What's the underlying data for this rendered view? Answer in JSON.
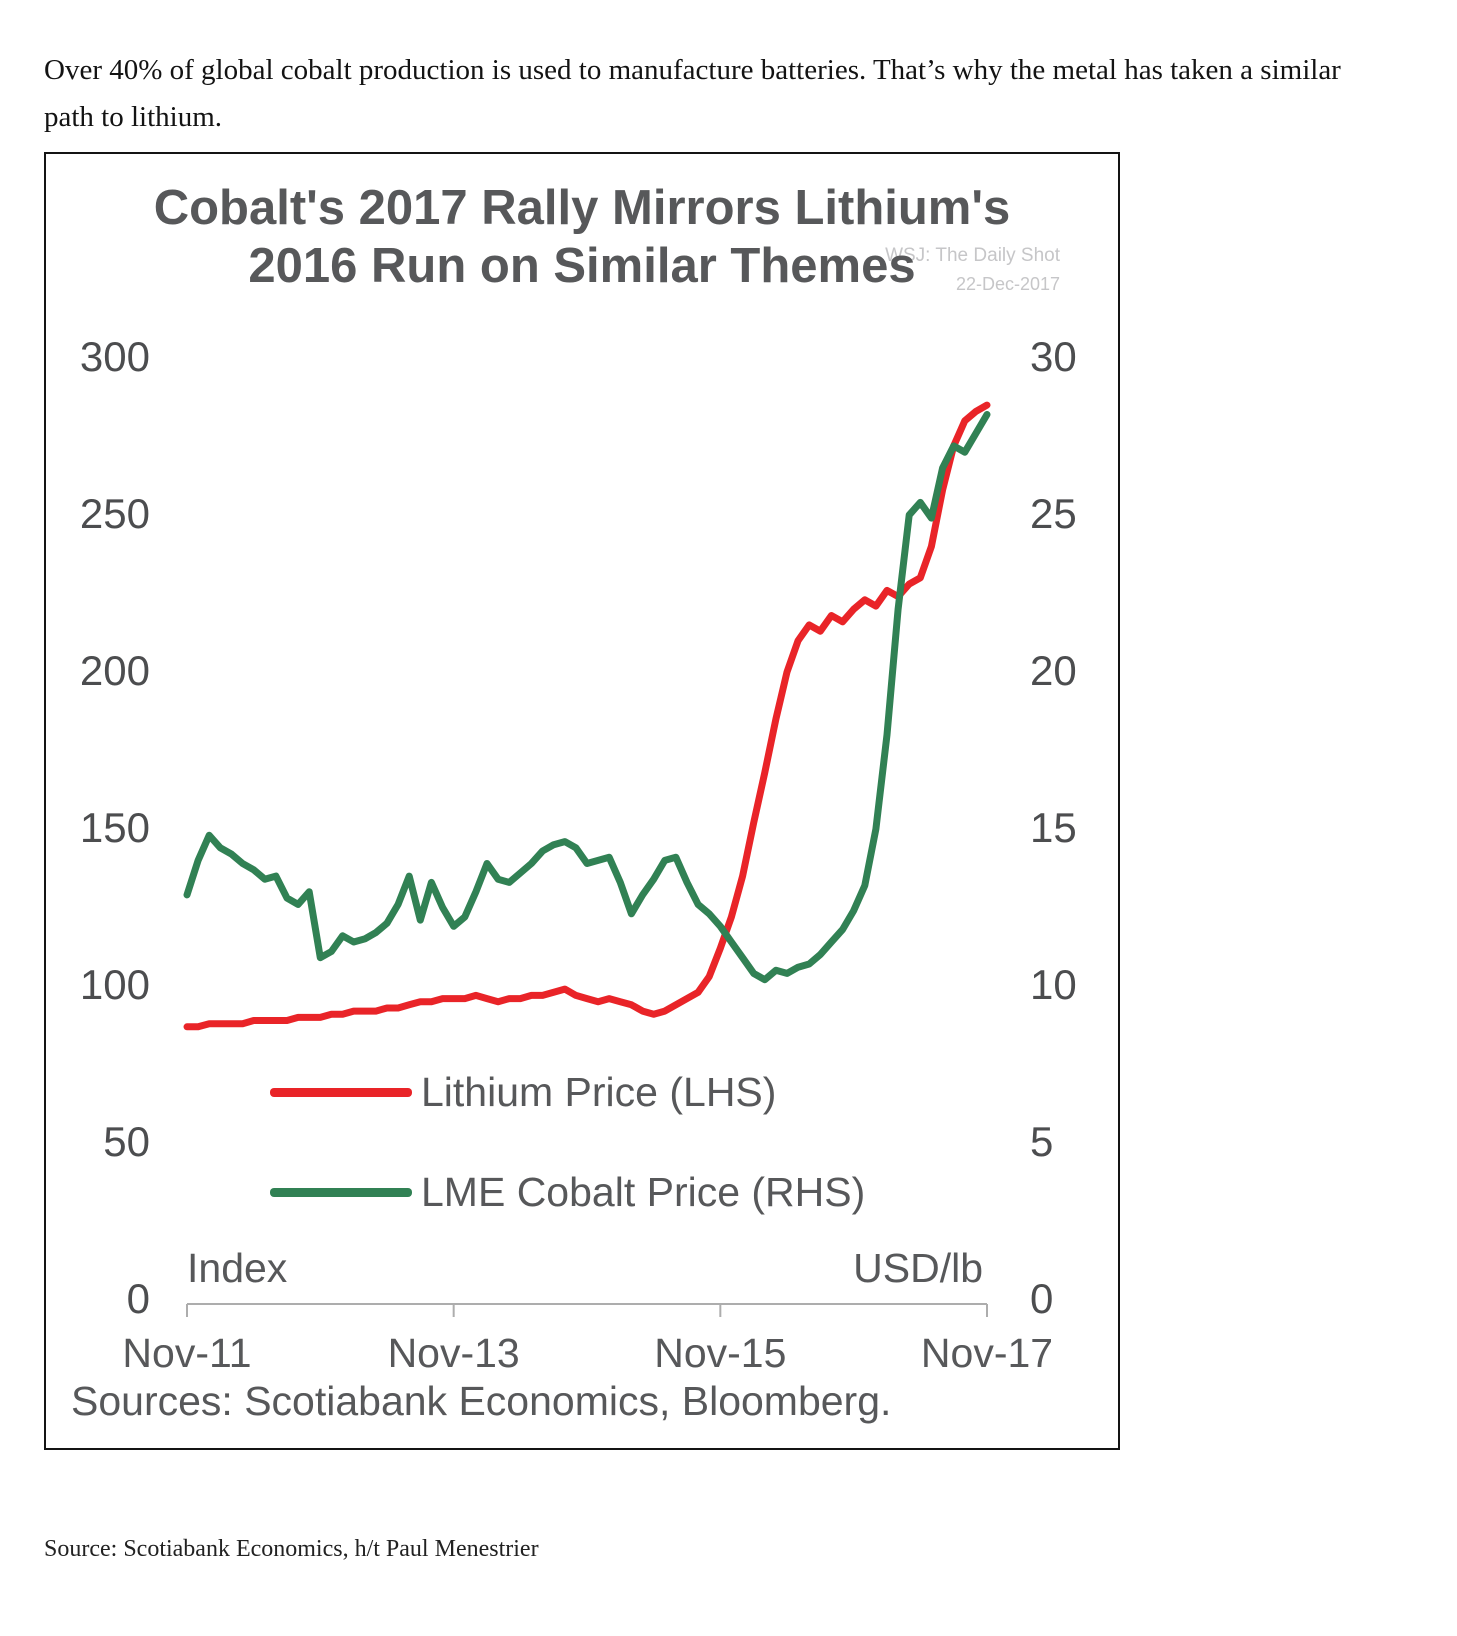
{
  "page": {
    "intro": "Over 40% of global cobalt production is used to manufacture batteries. That’s why the metal has taken a similar path to lithium.",
    "footer_source": "Source: Scotiabank Economics, h/t Paul Menestrier"
  },
  "chart": {
    "title_line1": "Cobalt's 2017 Rally Mirrors Lithium's",
    "title_line2": "2016 Run on Similar Themes",
    "watermark_line1": "WSJ: The Daily Shot",
    "watermark_line2": "22-Dec-2017",
    "sources_note": "Sources: Scotiabank Economics, Bloomberg.",
    "axis_color": "#adadad",
    "text_gray": "#57585a"
  },
  "chart_data": {
    "type": "line",
    "title": "Cobalt's 2017 Rally Mirrors Lithium's 2016 Run on Similar Themes",
    "x_unit": "months since Nov-2011",
    "x_tick_labels": [
      "Nov-11",
      "Nov-13",
      "Nov-15",
      "Nov-17"
    ],
    "x_tick_positions": [
      0,
      24,
      48,
      72
    ],
    "left_axis": {
      "label": "Index",
      "range": [
        0,
        300
      ],
      "ticks": [
        0,
        50,
        100,
        150,
        200,
        250,
        300
      ]
    },
    "right_axis": {
      "label": "USD/lb",
      "range": [
        0,
        30
      ],
      "ticks": [
        0,
        5,
        10,
        15,
        20,
        25,
        30
      ]
    },
    "grid": false,
    "legend_position": "inside-lower-left",
    "series": [
      {
        "name": "Lithium Price (LHS)",
        "axis": "left",
        "color": "#e92428",
        "values": [
          87,
          87,
          88,
          88,
          88,
          88,
          89,
          89,
          89,
          89,
          90,
          90,
          90,
          91,
          91,
          92,
          92,
          92,
          93,
          93,
          94,
          95,
          95,
          96,
          96,
          96,
          97,
          96,
          95,
          96,
          96,
          97,
          97,
          98,
          99,
          97,
          96,
          95,
          96,
          95,
          94,
          92,
          91,
          92,
          94,
          96,
          98,
          103,
          112,
          122,
          135,
          152,
          168,
          185,
          200,
          210,
          215,
          213,
          218,
          216,
          220,
          223,
          221,
          226,
          224,
          228,
          230,
          240,
          258,
          272,
          280,
          283,
          285
        ]
      },
      {
        "name": "LME Cobalt Price (RHS)",
        "axis": "right",
        "color": "#318154",
        "values": [
          12.9,
          14.0,
          14.8,
          14.4,
          14.2,
          13.9,
          13.7,
          13.4,
          13.5,
          12.8,
          12.6,
          13.0,
          10.9,
          11.1,
          11.6,
          11.4,
          11.5,
          11.7,
          12.0,
          12.6,
          13.5,
          12.1,
          13.3,
          12.5,
          11.9,
          12.2,
          13.0,
          13.9,
          13.4,
          13.3,
          13.6,
          13.9,
          14.3,
          14.5,
          14.6,
          14.4,
          13.9,
          14.0,
          14.1,
          13.3,
          12.3,
          12.9,
          13.4,
          14.0,
          14.1,
          13.3,
          12.6,
          12.3,
          11.9,
          11.4,
          10.9,
          10.4,
          10.2,
          10.5,
          10.4,
          10.6,
          10.7,
          11.0,
          11.4,
          11.8,
          12.4,
          13.2,
          15.0,
          18.0,
          22.0,
          25.0,
          25.4,
          24.9,
          26.5,
          27.2,
          27.0,
          27.6,
          28.2
        ]
      }
    ]
  }
}
